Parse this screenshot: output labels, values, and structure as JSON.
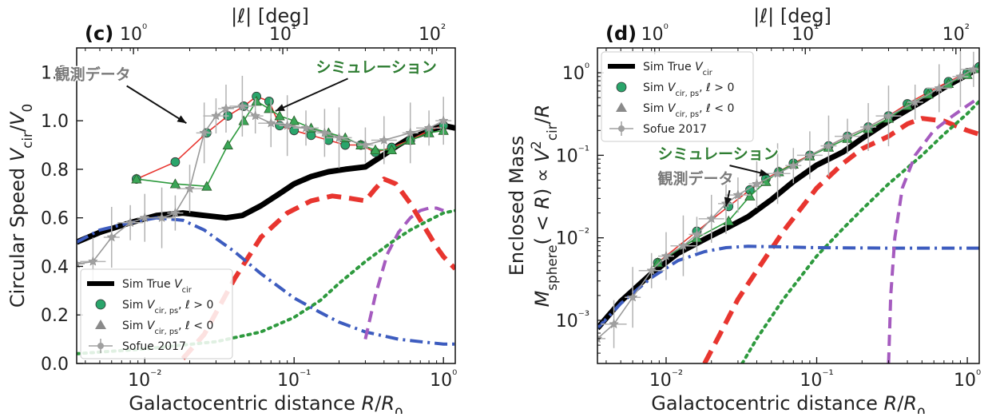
{
  "chart_data": [
    {
      "panel": "(c)",
      "type": "line",
      "xscale": "log",
      "xlim": [
        0.0035,
        1.2
      ],
      "yscale": "linear",
      "ylim": [
        0,
        1.3
      ],
      "xlabel": "Galactocentric distance R/R₀",
      "ylabel": "Circular Speed V_cir/V₀",
      "top_xlabel": "|ℓ| [deg]",
      "x_ticks": [
        {
          "v": 0.01,
          "t": "10⁻²"
        },
        {
          "v": 0.1,
          "t": "10⁻¹"
        },
        {
          "v": 1,
          "t": "10⁰"
        }
      ],
      "y_ticks": [
        {
          "v": 0.0,
          "t": "0.0"
        },
        {
          "v": 0.2,
          "t": "0.2"
        },
        {
          "v": 0.4,
          "t": "0.4"
        },
        {
          "v": 0.6,
          "t": "0.6"
        },
        {
          "v": 0.8,
          "t": "0.8"
        },
        {
          "v": 1.0,
          "t": "1.0"
        },
        {
          "v": 1.2,
          "t": "1.2"
        }
      ],
      "top_ticks": [
        {
          "v": 0.0084,
          "t": "10⁰"
        },
        {
          "v": 0.084,
          "t": "10¹"
        },
        {
          "v": 0.84,
          "t": "10²"
        }
      ],
      "legend_position": "lower-left",
      "legend": [
        "Sim True V_cir",
        "Sim V_cir,ps, ℓ > 0",
        "Sim V_cir,ps, ℓ < 0",
        "Sofue 2017"
      ],
      "annotations": [
        {
          "text": "観測データ",
          "color": "#7a7a7a",
          "at_x": 0.0025,
          "at_y": 1.17,
          "arrow_x": 0.019,
          "arrow_y": 0.99
        },
        {
          "text": "シミュレーション",
          "color": "#2e7d32",
          "at_x": 0.14,
          "at_y": 1.2,
          "arrow_x": 0.075,
          "arrow_y": 1.04
        }
      ],
      "series": [
        {
          "name": "Sim True V_cir",
          "color": "#000000",
          "style": "solid",
          "width": 7,
          "x": [
            0.0035,
            0.005,
            0.008,
            0.012,
            0.018,
            0.025,
            0.035,
            0.045,
            0.06,
            0.08,
            0.1,
            0.13,
            0.17,
            0.22,
            0.3,
            0.4,
            0.5,
            0.6,
            0.75,
            0.9,
            1.0,
            1.2
          ],
          "y": [
            0.5,
            0.54,
            0.58,
            0.61,
            0.62,
            0.61,
            0.6,
            0.61,
            0.65,
            0.7,
            0.74,
            0.77,
            0.79,
            0.8,
            0.81,
            0.86,
            0.9,
            0.93,
            0.95,
            0.97,
            0.98,
            0.97
          ]
        },
        {
          "color": "#e8352f",
          "style": "dashed",
          "width": 6,
          "x": [
            0.018,
            0.025,
            0.04,
            0.06,
            0.09,
            0.13,
            0.18,
            0.24,
            0.3,
            0.35,
            0.4,
            0.48,
            0.6,
            0.75,
            0.9,
            1.0,
            1.2
          ],
          "y": [
            0.02,
            0.12,
            0.35,
            0.52,
            0.62,
            0.67,
            0.69,
            0.68,
            0.67,
            0.72,
            0.76,
            0.74,
            0.66,
            0.56,
            0.48,
            0.44,
            0.39
          ]
        },
        {
          "color": "#2e9a3e",
          "style": "dotted",
          "width": 4,
          "x": [
            0.0035,
            0.01,
            0.03,
            0.06,
            0.1,
            0.15,
            0.2,
            0.3,
            0.45,
            0.6,
            0.8,
            1.0,
            1.2
          ],
          "y": [
            0.04,
            0.06,
            0.09,
            0.13,
            0.19,
            0.26,
            0.33,
            0.42,
            0.5,
            0.55,
            0.59,
            0.62,
            0.63
          ]
        },
        {
          "color": "#3d5cbf",
          "style": "dashdot",
          "width": 4,
          "x": [
            0.0035,
            0.005,
            0.008,
            0.012,
            0.018,
            0.025,
            0.04,
            0.06,
            0.1,
            0.15,
            0.2,
            0.3,
            0.5,
            0.7,
            1.0,
            1.2
          ],
          "y": [
            0.5,
            0.55,
            0.58,
            0.6,
            0.59,
            0.55,
            0.46,
            0.37,
            0.27,
            0.21,
            0.17,
            0.13,
            0.1,
            0.09,
            0.08,
            0.08
          ]
        },
        {
          "color": "#a55bbf",
          "style": "dashed",
          "width": 4,
          "x": [
            0.3,
            0.35,
            0.42,
            0.5,
            0.6,
            0.7,
            0.8,
            0.9,
            1.0
          ],
          "y": [
            0.1,
            0.28,
            0.45,
            0.54,
            0.6,
            0.63,
            0.64,
            0.64,
            0.63
          ]
        },
        {
          "name": "Sim V_cir,ps, ℓ > 0",
          "color": "#e8352f",
          "marker": "circle",
          "marker_color": "#2aa56b",
          "x": [
            0.0088,
            0.016,
            0.026,
            0.036,
            0.046,
            0.056,
            0.068,
            0.08,
            0.1,
            0.13,
            0.17,
            0.22,
            0.28,
            0.35,
            0.45,
            0.6,
            0.8,
            1.0
          ],
          "y": [
            0.76,
            0.83,
            0.95,
            1.02,
            1.06,
            1.1,
            1.08,
            0.98,
            0.96,
            0.94,
            0.92,
            0.9,
            0.9,
            0.87,
            0.89,
            0.92,
            0.96,
            0.98
          ]
        },
        {
          "name": "Sim V_cir,ps, ℓ < 0",
          "color": "#2e9a3e",
          "marker": "triangle",
          "marker_color": "#3aa656",
          "x": [
            0.0088,
            0.016,
            0.026,
            0.036,
            0.046,
            0.056,
            0.068,
            0.08,
            0.1,
            0.13,
            0.17,
            0.22,
            0.28,
            0.35,
            0.45,
            0.6,
            0.8,
            1.0
          ],
          "y": [
            0.76,
            0.74,
            0.73,
            0.9,
            1.0,
            1.08,
            1.05,
            1.02,
            1.0,
            0.97,
            0.95,
            0.93,
            0.9,
            0.88,
            0.88,
            0.92,
            0.95,
            0.96
          ]
        },
        {
          "name": "Sofue 2017",
          "color": "#9a9a9a",
          "marker": "star",
          "x": [
            0.0035,
            0.0045,
            0.006,
            0.008,
            0.01,
            0.013,
            0.016,
            0.02,
            0.025,
            0.03,
            0.035,
            0.045,
            0.055,
            0.07,
            0.09,
            0.12,
            0.16,
            0.2,
            0.3,
            0.4,
            0.6,
            0.8,
            1.0
          ],
          "y": [
            0.41,
            0.42,
            0.52,
            0.58,
            0.6,
            0.6,
            0.62,
            0.72,
            0.95,
            1.02,
            1.05,
            1.06,
            1.02,
            0.99,
            0.98,
            0.97,
            0.95,
            0.93,
            0.9,
            0.92,
            0.95,
            0.97,
            1.0
          ]
        }
      ]
    },
    {
      "panel": "(d)",
      "type": "line",
      "xscale": "log",
      "xlim": [
        0.0035,
        1.2
      ],
      "yscale": "log",
      "ylim": [
        0.0003,
        2.0
      ],
      "xlabel": "Galactocentric distance R/R₀",
      "ylabel": "Enclosed Mass M_sphere(<R) ∝ V_cir²/R",
      "top_xlabel": "|ℓ| [deg]",
      "x_ticks": [
        {
          "v": 0.01,
          "t": "10⁻²"
        },
        {
          "v": 0.1,
          "t": "10⁻¹"
        },
        {
          "v": 1,
          "t": "10⁰"
        }
      ],
      "y_ticks": [
        {
          "v": 0.001,
          "t": "10⁻³"
        },
        {
          "v": 0.01,
          "t": "10⁻²"
        },
        {
          "v": 0.1,
          "t": "10⁻¹"
        },
        {
          "v": 1,
          "t": "10⁰"
        }
      ],
      "top_ticks": [
        {
          "v": 0.0084,
          "t": "10⁰"
        },
        {
          "v": 0.084,
          "t": "10¹"
        },
        {
          "v": 0.84,
          "t": "10²"
        }
      ],
      "legend_position": "upper-left",
      "legend": [
        "Sim True V_cir",
        "Sim V_cir,ps, ℓ > 0",
        "Sim V_cir,ps, ℓ < 0",
        "Sofue 2017"
      ],
      "annotations": [
        {
          "text": "シミュレーション",
          "color": "#2e7d32",
          "at_x": 0.0088,
          "at_y": 0.09,
          "arrow_x": 0.048,
          "arrow_y": 0.058
        },
        {
          "text": "観測データ",
          "color": "#7a7a7a",
          "at_x": 0.0088,
          "at_y": 0.045,
          "arrow_x": 0.025,
          "arrow_y": 0.024
        }
      ],
      "series": [
        {
          "name": "Sim True V_cir",
          "color": "#000000",
          "style": "solid",
          "width": 7,
          "x": [
            0.0035,
            0.005,
            0.008,
            0.012,
            0.018,
            0.025,
            0.035,
            0.05,
            0.07,
            0.1,
            0.15,
            0.2,
            0.3,
            0.5,
            0.7,
            1.0,
            1.2
          ],
          "y": [
            0.0008,
            0.0017,
            0.0037,
            0.0065,
            0.0096,
            0.013,
            0.018,
            0.029,
            0.048,
            0.076,
            0.11,
            0.16,
            0.26,
            0.45,
            0.66,
            0.95,
            1.15
          ]
        },
        {
          "color": "#e8352f",
          "style": "dashed",
          "width": 6,
          "x": [
            0.018,
            0.022,
            0.03,
            0.04,
            0.06,
            0.1,
            0.15,
            0.2,
            0.3,
            0.4,
            0.5,
            0.7,
            1.0,
            1.2
          ],
          "y": [
            0.0003,
            0.0006,
            0.0018,
            0.004,
            0.012,
            0.04,
            0.08,
            0.12,
            0.17,
            0.24,
            0.28,
            0.26,
            0.2,
            0.18
          ]
        },
        {
          "color": "#2e9a3e",
          "style": "dotted",
          "width": 4,
          "x": [
            0.032,
            0.04,
            0.06,
            0.1,
            0.15,
            0.2,
            0.3,
            0.5,
            0.7,
            1.0,
            1.2
          ],
          "y": [
            0.0003,
            0.0006,
            0.0018,
            0.006,
            0.013,
            0.022,
            0.045,
            0.1,
            0.18,
            0.32,
            0.45
          ]
        },
        {
          "color": "#3d5cbf",
          "style": "dashdot",
          "width": 4,
          "x": [
            0.0035,
            0.005,
            0.008,
            0.012,
            0.018,
            0.025,
            0.035,
            0.05,
            0.1,
            0.3,
            1.0,
            1.2
          ],
          "y": [
            0.0008,
            0.0016,
            0.0033,
            0.0053,
            0.0068,
            0.0076,
            0.0079,
            0.0078,
            0.0076,
            0.0075,
            0.0075,
            0.0075
          ]
        },
        {
          "color": "#a55bbf",
          "style": "dashed",
          "width": 4,
          "x": [
            0.3,
            0.31,
            0.33,
            0.37,
            0.45,
            0.6,
            0.8,
            1.0,
            1.2
          ],
          "y": [
            0.0003,
            0.002,
            0.01,
            0.04,
            0.1,
            0.2,
            0.3,
            0.4,
            0.5
          ]
        },
        {
          "name": "Sim V_cir,ps, ℓ > 0",
          "color": "#e8352f",
          "marker": "circle",
          "marker_color": "#2aa56b",
          "x": [
            0.0088,
            0.016,
            0.026,
            0.036,
            0.046,
            0.056,
            0.07,
            0.09,
            0.12,
            0.16,
            0.22,
            0.3,
            0.4,
            0.55,
            0.75,
            1.0,
            1.2
          ],
          "y": [
            0.005,
            0.012,
            0.024,
            0.038,
            0.052,
            0.063,
            0.08,
            0.1,
            0.13,
            0.17,
            0.22,
            0.3,
            0.42,
            0.58,
            0.78,
            1.0,
            1.18
          ]
        },
        {
          "name": "Sim V_cir,ps, ℓ < 0",
          "color": "#2e9a3e",
          "marker": "triangle",
          "marker_color": "#3aa656",
          "x": [
            0.0088,
            0.016,
            0.026,
            0.036,
            0.046,
            0.056,
            0.07,
            0.09,
            0.12,
            0.16,
            0.22,
            0.3,
            0.4,
            0.55,
            0.75,
            1.0,
            1.2
          ],
          "y": [
            0.005,
            0.01,
            0.016,
            0.032,
            0.048,
            0.063,
            0.078,
            0.098,
            0.125,
            0.16,
            0.21,
            0.28,
            0.4,
            0.55,
            0.74,
            0.95,
            1.12
          ]
        },
        {
          "name": "Sofue 2017",
          "color": "#9a9a9a",
          "marker": "star",
          "x": [
            0.0035,
            0.0045,
            0.006,
            0.008,
            0.01,
            0.013,
            0.016,
            0.02,
            0.025,
            0.03,
            0.04,
            0.055,
            0.07,
            0.09,
            0.12,
            0.16,
            0.22,
            0.3,
            0.45,
            0.65,
            0.9,
            1.1
          ],
          "y": [
            0.0006,
            0.0009,
            0.0019,
            0.004,
            0.006,
            0.008,
            0.011,
            0.017,
            0.026,
            0.033,
            0.045,
            0.06,
            0.075,
            0.1,
            0.13,
            0.17,
            0.22,
            0.3,
            0.44,
            0.65,
            0.9,
            1.1
          ]
        }
      ]
    }
  ]
}
